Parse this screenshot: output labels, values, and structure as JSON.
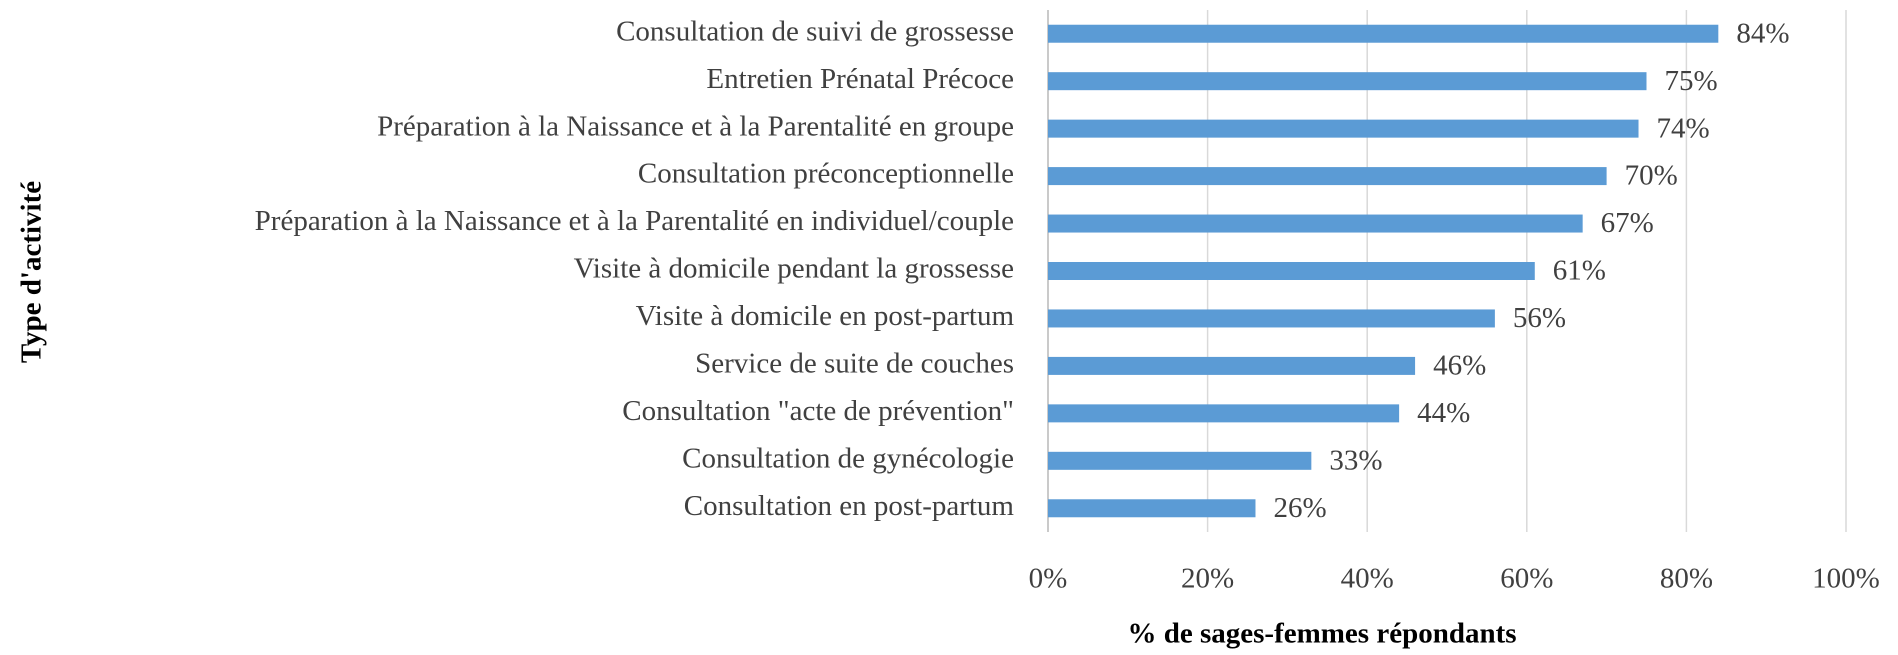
{
  "chart_data": {
    "type": "bar",
    "orientation": "horizontal",
    "x_label": "% de sages-femmes répondants",
    "y_label": "Type d'activité",
    "categories": [
      "Consultation de suivi de grossesse",
      "Entretien Prénatal Précoce",
      "Préparation à la Naissance et à la Parentalité en groupe",
      "Consultation préconceptionnelle",
      "Préparation à la Naissance et à la Parentalité en individuel/couple",
      "Visite à domicile pendant la grossesse",
      "Visite à domicile en post-partum",
      "Service de suite de couches",
      "Consultation \"acte de prévention\"",
      "Consultation de gynécologie",
      "Consultation en post-partum"
    ],
    "values": [
      84,
      75,
      74,
      70,
      67,
      61,
      56,
      46,
      44,
      33,
      26
    ],
    "value_labels": [
      "84%",
      "75%",
      "74%",
      "70%",
      "67%",
      "61%",
      "56%",
      "46%",
      "44%",
      "33%",
      "26%"
    ],
    "color": "#5b9bd5",
    "xlim": [
      0,
      100
    ],
    "xticks": [
      {
        "value": 0,
        "label": "0%"
      },
      {
        "value": 20,
        "label": "20%"
      },
      {
        "value": 40,
        "label": "40%"
      },
      {
        "value": 60,
        "label": "60%"
      },
      {
        "value": 80,
        "label": "80%"
      },
      {
        "value": 100,
        "label": "100%"
      }
    ],
    "grid": true
  }
}
